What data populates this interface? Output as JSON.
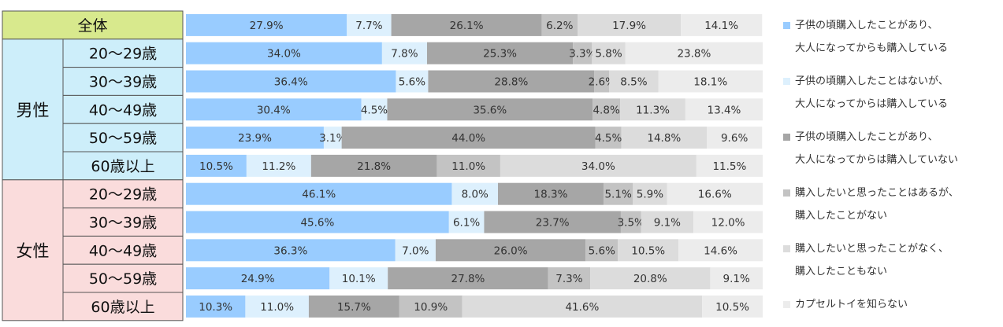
{
  "chart_data": {
    "type": "bar",
    "orientation": "horizontal",
    "stacked": true,
    "percent": true,
    "groups": [
      {
        "label": "",
        "rows": [
          0
        ]
      },
      {
        "label": "男性",
        "rows": [
          1,
          2,
          3,
          4,
          5
        ]
      },
      {
        "label": "女性",
        "rows": [
          6,
          7,
          8,
          9,
          10
        ]
      }
    ],
    "categories": [
      "全体",
      "20～29歳",
      "30～39歳",
      "40～49歳",
      "50～59歳",
      "60歳以上",
      "20～29歳",
      "30～39歳",
      "40～49歳",
      "50～59歳",
      "60歳以上"
    ],
    "series": [
      {
        "name": "子供の頃購入したことがあり、大人になってからも購入している",
        "legend_lines": [
          "子供の頃購入したことがあり、",
          "大人になってからも購入している"
        ],
        "color": "#99ccff",
        "values": [
          27.9,
          34.0,
          36.4,
          30.4,
          23.9,
          10.5,
          46.1,
          45.6,
          36.3,
          24.9,
          10.3
        ]
      },
      {
        "name": "子供の頃購入したことはないが、大人になってからは購入している",
        "legend_lines": [
          "子供の頃購入したことはないが、",
          "大人になってからは購入している"
        ],
        "color": "#ddf0fd",
        "values": [
          7.7,
          7.8,
          5.6,
          4.5,
          3.1,
          11.2,
          8.0,
          6.1,
          7.0,
          10.1,
          11.0
        ]
      },
      {
        "name": "子供の頃購入したことがあり、大人になってからは購入していない",
        "legend_lines": [
          "子供の頃購入したことがあり、",
          "大人になってからは購入していない"
        ],
        "color": "#a6a6a6",
        "values": [
          26.1,
          25.3,
          28.8,
          35.6,
          44.0,
          21.8,
          18.3,
          23.7,
          26.0,
          27.8,
          15.7
        ]
      },
      {
        "name": "購入したいと思ったことはあるが、購入したことがない",
        "legend_lines": [
          "購入したいと思ったことはあるが、",
          "購入したことがない"
        ],
        "color": "#c3c3c3",
        "values": [
          6.2,
          3.3,
          2.6,
          4.8,
          4.5,
          11.0,
          5.1,
          3.5,
          5.6,
          7.3,
          10.9
        ]
      },
      {
        "name": "購入したいと思ったことがなく、購入したこともない",
        "legend_lines": [
          "購入したいと思ったことがなく、",
          "購入したこともない"
        ],
        "color": "#dcdcdc",
        "values": [
          17.9,
          5.8,
          8.5,
          11.3,
          14.8,
          34.0,
          5.9,
          9.1,
          10.5,
          20.8,
          41.6
        ]
      },
      {
        "name": "カプセルトイを知らない",
        "legend_lines": [
          "カプセルトイを知らない"
        ],
        "color": "#ececec",
        "values": [
          14.1,
          23.8,
          18.1,
          13.4,
          9.6,
          11.5,
          16.6,
          12.0,
          14.6,
          9.1,
          10.5
        ]
      }
    ],
    "value_format": "%",
    "xlim": [
      0,
      100
    ],
    "legend": "right",
    "header_colors": {
      "overall": "#d8e98d",
      "male": "#cdeefa",
      "female": "#fadcdc"
    }
  }
}
